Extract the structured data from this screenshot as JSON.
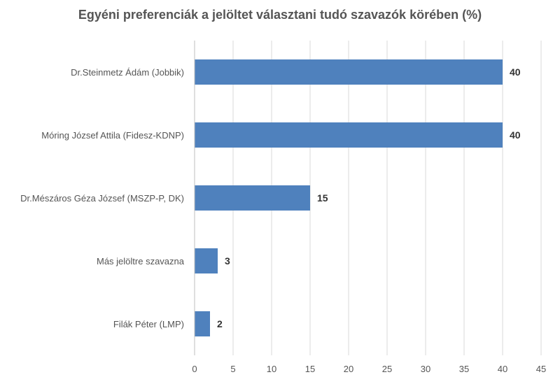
{
  "colors": {
    "bar": "#4f81bd",
    "grid": "#d9d9d9",
    "axis": "#bfbfbf"
  },
  "chart_data": {
    "type": "bar",
    "orientation": "horizontal",
    "title": "Egyéni preferenciák a jelöltet választani tudó szavazók körében (%)",
    "xlabel": "",
    "ylabel": "",
    "categories": [
      "Dr.Steinmetz Ádám (Jobbik)",
      "Móring József Attila (Fidesz-KDNP)",
      "Dr.Mészáros Géza József (MSZP-P, DK)",
      "Más jelöltre szavazna",
      "Filák Péter (LMP)"
    ],
    "values": [
      40,
      40,
      15,
      3,
      2
    ],
    "data_labels": [
      "40",
      "40",
      "15",
      "3",
      "2"
    ],
    "xlim": [
      0,
      45
    ],
    "xticks": [
      0,
      5,
      10,
      15,
      20,
      25,
      30,
      35,
      40,
      45
    ],
    "grid": "vertical",
    "legend": "none"
  }
}
